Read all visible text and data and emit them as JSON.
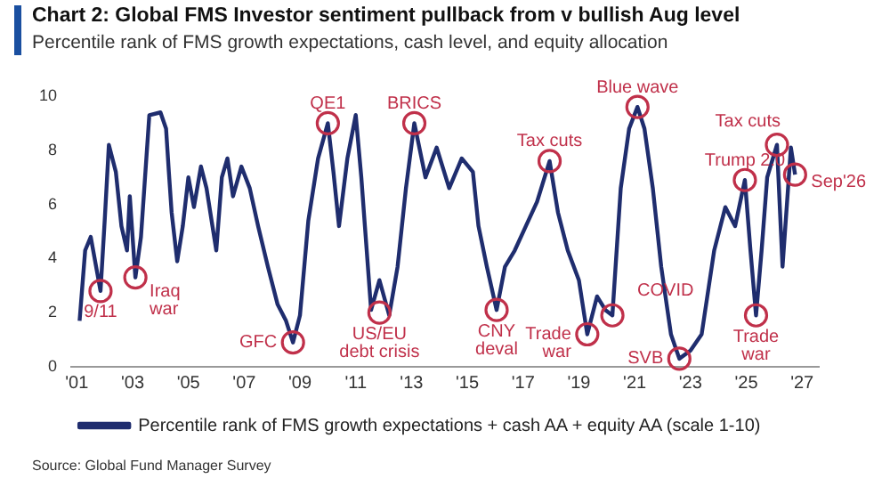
{
  "chart_data": {
    "type": "line",
    "title": "Chart 2: Global FMS Investor sentiment pullback from v bullish Aug level",
    "subtitle": "Percentile rank of FMS growth expectations, cash level, and equity allocation",
    "xlim": [
      2000.8,
      2027.6
    ],
    "xticks": [
      {
        "value": 2001,
        "label": "'01"
      },
      {
        "value": 2003,
        "label": "'03"
      },
      {
        "value": 2005,
        "label": "'05"
      },
      {
        "value": 2007,
        "label": "'07"
      },
      {
        "value": 2009,
        "label": "'09"
      },
      {
        "value": 2011,
        "label": "'11"
      },
      {
        "value": 2013,
        "label": "'13"
      },
      {
        "value": 2015,
        "label": "'15"
      },
      {
        "value": 2017,
        "label": "'17"
      },
      {
        "value": 2019,
        "label": "'19"
      },
      {
        "value": 2021,
        "label": "'21"
      },
      {
        "value": 2023,
        "label": "'23"
      },
      {
        "value": 2025,
        "label": "'25"
      },
      {
        "value": 2027,
        "label": "'27"
      }
    ],
    "ylim": [
      0,
      10
    ],
    "yticks": [
      0,
      2,
      4,
      6,
      8,
      10
    ],
    "legend": "bottom",
    "series": [
      {
        "name": "Percentile rank of FMS growth expectations + cash AA + equity AA (scale 1-10)",
        "color": "#1f2d6e",
        "x": [
          2001.1,
          2001.3,
          2001.5,
          2001.85,
          2002.0,
          2002.15,
          2002.4,
          2002.6,
          2002.8,
          2002.9,
          2003.1,
          2003.3,
          2003.6,
          2004.0,
          2004.2,
          2004.3,
          2004.4,
          2004.6,
          2004.8,
          2005.0,
          2005.2,
          2005.45,
          2005.65,
          2006.0,
          2006.2,
          2006.4,
          2006.6,
          2006.9,
          2007.2,
          2007.5,
          2007.85,
          2008.2,
          2008.5,
          2008.75,
          2009.0,
          2009.3,
          2009.65,
          2010.0,
          2010.2,
          2010.4,
          2010.7,
          2011.0,
          2011.2,
          2011.55,
          2011.85,
          2012.2,
          2012.5,
          2012.8,
          2013.1,
          2013.5,
          2013.9,
          2014.35,
          2014.8,
          2015.2,
          2015.4,
          2015.7,
          2016.05,
          2016.35,
          2016.7,
          2017.1,
          2017.5,
          2017.95,
          2018.25,
          2018.6,
          2019.0,
          2019.3,
          2019.65,
          2019.95,
          2020.2,
          2020.5,
          2020.8,
          2021.1,
          2021.35,
          2021.65,
          2021.95,
          2022.3,
          2022.6,
          2023.0,
          2023.4,
          2023.85,
          2024.25,
          2024.6,
          2024.95,
          2025.15,
          2025.35,
          2025.55,
          2025.75,
          2026.1,
          2026.3,
          2026.45,
          2026.6,
          2026.75
        ],
        "values": [
          1.7,
          4.3,
          4.8,
          2.8,
          5.4,
          8.2,
          7.2,
          5.2,
          4.3,
          6.3,
          3.3,
          4.8,
          9.3,
          9.4,
          8.8,
          7.2,
          5.7,
          3.9,
          5.2,
          7.0,
          5.9,
          7.4,
          6.6,
          4.3,
          7.0,
          7.7,
          6.3,
          7.4,
          6.6,
          5.2,
          3.7,
          2.3,
          1.7,
          0.9,
          1.9,
          5.4,
          7.7,
          9.0,
          7.2,
          5.2,
          7.7,
          9.3,
          7.0,
          2.1,
          3.2,
          1.9,
          3.7,
          6.6,
          9.0,
          7.0,
          8.1,
          6.6,
          7.7,
          7.2,
          5.2,
          3.7,
          2.1,
          3.7,
          4.3,
          5.2,
          6.1,
          7.6,
          5.7,
          4.3,
          3.2,
          1.2,
          2.6,
          2.1,
          1.9,
          6.6,
          8.8,
          9.6,
          8.8,
          6.6,
          3.7,
          1.2,
          0.3,
          0.6,
          1.2,
          4.3,
          5.9,
          5.2,
          6.9,
          4.3,
          1.9,
          4.3,
          7.0,
          8.2,
          3.7,
          5.9,
          8.1,
          7.1
        ]
      }
    ],
    "annotations": [
      {
        "text": "9/11",
        "x": 2001.85,
        "y": 2.8
      },
      {
        "text": "Iraq\nwar",
        "x": 2003.1,
        "y": 3.3
      },
      {
        "text": "GFC",
        "x": 2008.75,
        "y": 0.9
      },
      {
        "text": "QE1",
        "x": 2010.0,
        "y": 9.0
      },
      {
        "text": "US/EU\ndebt crisis",
        "x": 2011.85,
        "y": 2.0
      },
      {
        "text": "BRICS",
        "x": 2013.1,
        "y": 9.0
      },
      {
        "text": "CNY\ndeval",
        "x": 2016.05,
        "y": 2.1
      },
      {
        "text": "Tax cuts",
        "x": 2017.95,
        "y": 7.6
      },
      {
        "text": "Trade\nwar",
        "x": 2019.3,
        "y": 1.2
      },
      {
        "text": "COVID",
        "x": 2020.2,
        "y": 1.9
      },
      {
        "text": "Blue wave",
        "x": 2021.1,
        "y": 9.6
      },
      {
        "text": "SVB",
        "x": 2022.6,
        "y": 0.3
      },
      {
        "text": "Trump 2.0",
        "x": 2024.95,
        "y": 6.9
      },
      {
        "text": "Trade\nwar",
        "x": 2025.35,
        "y": 1.9
      },
      {
        "text": "Tax cuts",
        "x": 2026.1,
        "y": 8.2
      },
      {
        "text": "Sep'26",
        "x": 2026.75,
        "y": 7.1
      },
      "Source: Global Fund Manager Survey"
    ]
  }
}
